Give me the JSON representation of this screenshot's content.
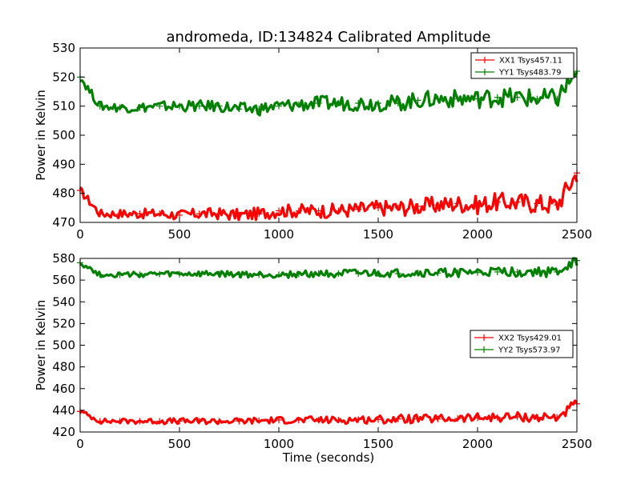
{
  "chart_data": [
    {
      "type": "line",
      "title": "andromeda, ID:134824 Calibrated Amplitude",
      "xlabel": "",
      "ylabel": "Power in Kelvin",
      "xlim": [
        0,
        2500
      ],
      "ylim": [
        470,
        530
      ],
      "xticks": [
        "0",
        "500",
        "1000",
        "1500",
        "2000",
        "2500"
      ],
      "yticks": [
        "470",
        "480",
        "490",
        "500",
        "510",
        "520",
        "530"
      ],
      "legend_position": "top-right",
      "x": [
        0,
        100,
        200,
        300,
        400,
        500,
        600,
        700,
        800,
        900,
        1000,
        1100,
        1200,
        1300,
        1400,
        1500,
        1600,
        1700,
        1800,
        1900,
        2000,
        2100,
        2200,
        2300,
        2400,
        2500
      ],
      "series": [
        {
          "name": "XX1 Tsys457.11",
          "color": "#ff0000",
          "values": [
            481,
            473,
            473,
            473,
            473,
            472.5,
            473,
            473,
            472.5,
            473,
            474,
            474,
            474,
            474,
            474.5,
            475,
            475,
            475.5,
            476,
            476.5,
            476,
            477,
            477,
            476.5,
            476,
            487
          ]
        },
        {
          "name": "YY1 Tsys483.79",
          "color": "#008000",
          "values": [
            520,
            510,
            509.5,
            509.5,
            510,
            510,
            510,
            510,
            509,
            509,
            510,
            510.5,
            511,
            511,
            511,
            511,
            511,
            512,
            512.5,
            512.5,
            512.5,
            513,
            513,
            512.5,
            512.5,
            522
          ]
        }
      ]
    },
    {
      "type": "line",
      "title": "",
      "xlabel": "Time (seconds)",
      "ylabel": "Power in Kelvin",
      "xlim": [
        0,
        2500
      ],
      "ylim": [
        420,
        580
      ],
      "xticks": [
        "0",
        "500",
        "1000",
        "1500",
        "2000",
        "2500"
      ],
      "yticks": [
        "420",
        "440",
        "460",
        "480",
        "500",
        "520",
        "540",
        "560",
        "580"
      ],
      "legend_position": "center-right",
      "x": [
        0,
        100,
        200,
        300,
        400,
        500,
        600,
        700,
        800,
        900,
        1000,
        1100,
        1200,
        1300,
        1400,
        1500,
        1600,
        1700,
        1800,
        1900,
        2000,
        2100,
        2200,
        2300,
        2400,
        2500
      ],
      "series": [
        {
          "name": "XX2 Tsys429.01",
          "color": "#ff0000",
          "values": [
            439,
            430,
            430,
            430,
            430,
            430,
            430,
            430,
            430,
            430.5,
            431,
            431,
            431,
            431,
            431.5,
            431.5,
            432,
            432,
            432,
            432.5,
            433,
            433.5,
            434,
            433.5,
            433.5,
            446
          ]
        },
        {
          "name": "YY2 Tsys573.97",
          "color": "#008000",
          "values": [
            576,
            565,
            565,
            565,
            565.5,
            565.5,
            565.5,
            565.5,
            565,
            565,
            565,
            565.5,
            566,
            566,
            566,
            566,
            566,
            566.5,
            566.5,
            567,
            567,
            567.5,
            567.5,
            567.5,
            567.5,
            578
          ]
        }
      ]
    }
  ]
}
